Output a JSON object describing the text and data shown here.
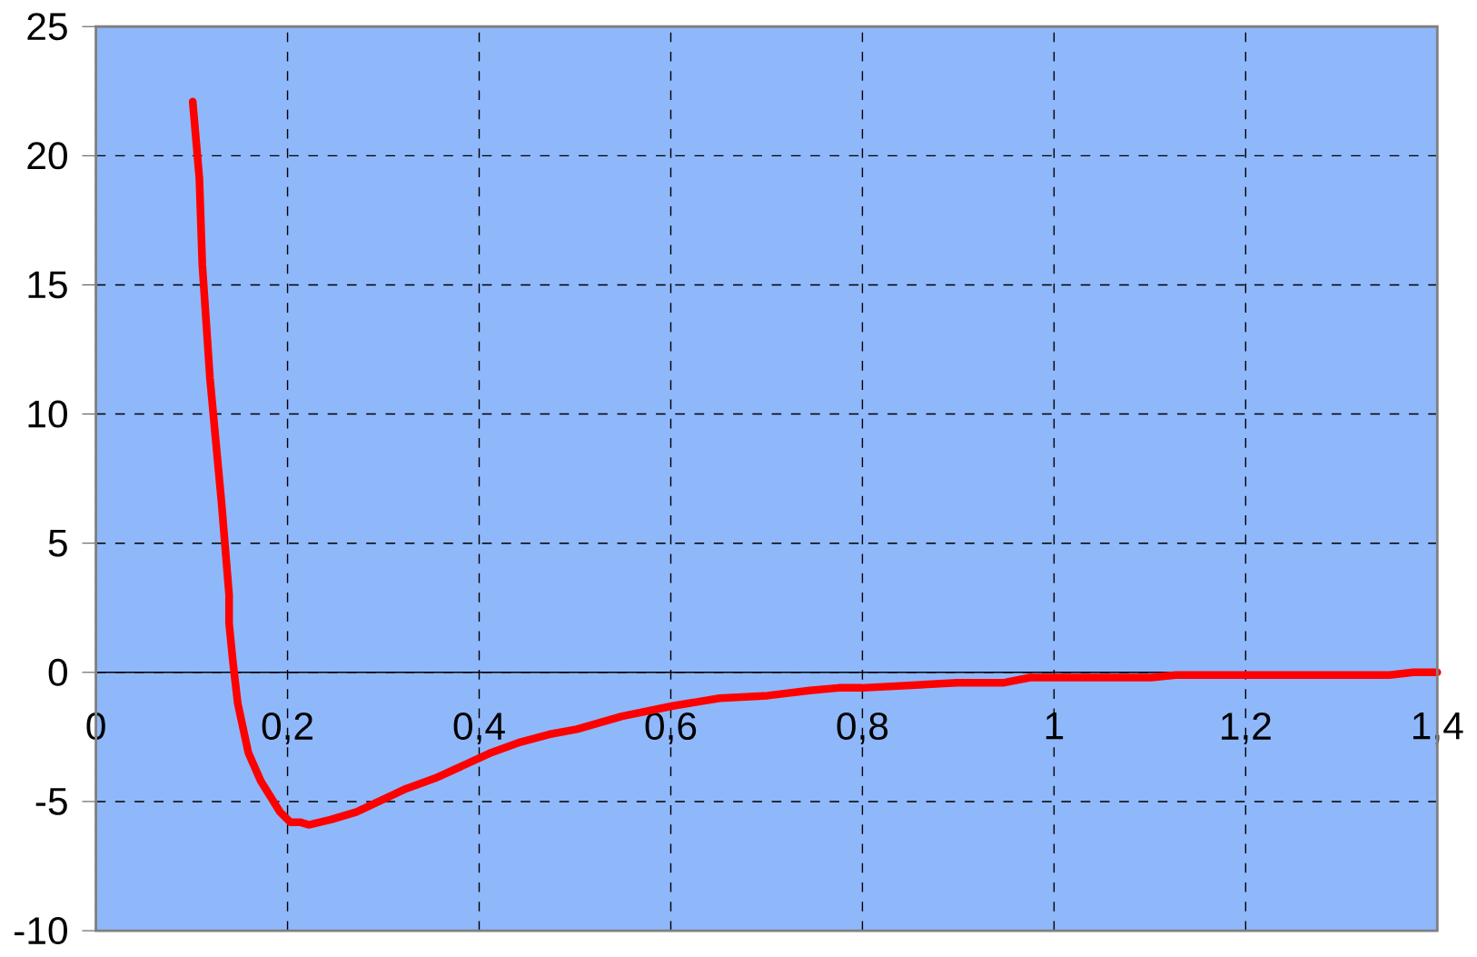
{
  "chart_data": {
    "type": "line",
    "x": [
      0.101,
      0.108,
      0.111,
      0.119,
      0.131,
      0.139,
      0.139,
      0.143,
      0.148,
      0.159,
      0.172,
      0.192,
      0.203,
      0.213,
      0.222,
      0.245,
      0.272,
      0.324,
      0.354,
      0.413,
      0.443,
      0.473,
      0.502,
      0.549,
      0.602,
      0.651,
      0.701,
      0.745,
      0.775,
      0.8,
      0.899,
      0.948,
      0.975,
      1.102,
      1.127,
      1.35,
      1.375,
      1.4
    ],
    "series": [
      {
        "color": "#ff0000",
        "values": [
          22.1,
          19.1,
          15.8,
          11.4,
          6.6,
          3.0,
          1.9,
          0.4,
          -1.2,
          -3.1,
          -4.2,
          -5.4,
          -5.8,
          -5.8,
          -5.9,
          -5.7,
          -5.4,
          -4.5,
          -4.1,
          -3.1,
          -2.7,
          -2.4,
          -2.2,
          -1.7,
          -1.3,
          -1.0,
          -0.9,
          -0.7,
          -0.6,
          -0.6,
          -0.4,
          -0.4,
          -0.2,
          -0.2,
          -0.1,
          -0.1,
          0,
          0
        ]
      }
    ],
    "xlim": [
      0,
      1.4
    ],
    "ylim": [
      -10,
      25
    ],
    "xticks": [
      {
        "value": 0,
        "label": "0"
      },
      {
        "value": 0.2,
        "label": "0,2"
      },
      {
        "value": 0.4,
        "label": "0,4"
      },
      {
        "value": 0.6,
        "label": "0,6"
      },
      {
        "value": 0.8,
        "label": "0,8"
      },
      {
        "value": 1,
        "label": "1"
      },
      {
        "value": 1.2,
        "label": "1,2"
      },
      {
        "value": 1.4,
        "label": "1,4"
      }
    ],
    "yticks": [
      -10,
      -5,
      0,
      5,
      10,
      15,
      20,
      25
    ],
    "grid": true,
    "line_style": "solid",
    "marker": "none"
  }
}
